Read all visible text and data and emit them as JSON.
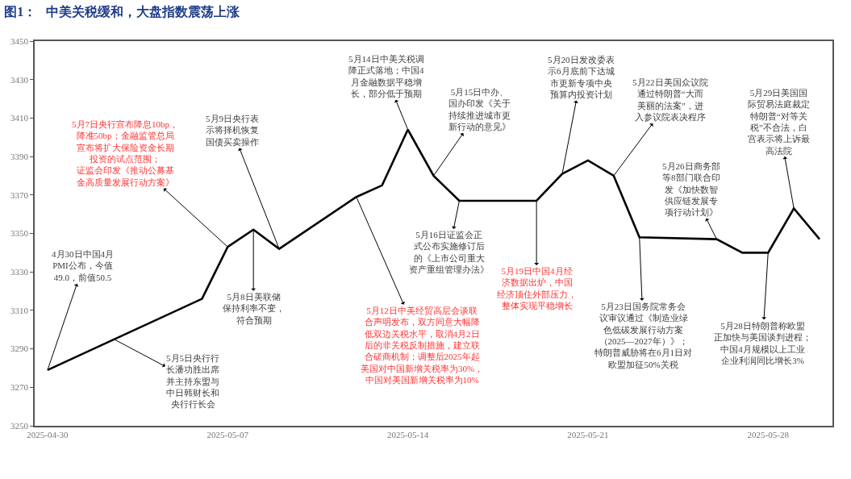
{
  "chart_data": {
    "type": "line",
    "title": "图1：   中美关税缓和，大盘指数震荡上涨",
    "x": [
      "2025-04-30",
      "2025-05-06",
      "2025-05-07",
      "2025-05-08",
      "2025-05-09",
      "2025-05-12",
      "2025-05-13",
      "2025-05-14",
      "2025-05-15",
      "2025-05-16",
      "2025-05-19",
      "2025-05-20",
      "2025-05-21",
      "2025-05-22",
      "2025-05-23",
      "2025-05-26",
      "2025-05-27",
      "2025-05-28",
      "2025-05-29",
      "2025-05-30"
    ],
    "series": [
      {
        "color": "#000000",
        "values": [
          3279,
          3316,
          3343,
          3352,
          3342,
          3369,
          3375,
          3404,
          3380,
          3367,
          3367,
          3381,
          3388,
          3380,
          3348,
          3347,
          3340,
          3340,
          3363,
          3347
        ]
      }
    ],
    "xlim": [
      "2025-04-29T12:00",
      "2025-05-30T12:00"
    ],
    "xticks": [
      "2025-04-30",
      "2025-05-07",
      "2025-05-14",
      "2025-05-21",
      "2025-05-28"
    ],
    "ylim": [
      3250,
      3450
    ],
    "yticks": [
      3250,
      3270,
      3290,
      3310,
      3330,
      3350,
      3370,
      3390,
      3410,
      3430,
      3450
    ],
    "marker": "none",
    "line_style": "solid",
    "annotations": [
      {
        "text": "4月30日中国4月PMI公布，今值49.0，前值50.5",
        "x": "2025-04-30",
        "y": 3279
      },
      {
        "text": "5月5日央行行长潘功胜出席并主持东盟与中日韩财长和央行行长会",
        "x": "2025-05-02T14:00",
        "y": 3295
      },
      {
        "text": "5月7日央行宣布降息10bp，降准50bp；金融监管总局宣布将扩大保险资金长期投资的试点范围；证监会印发《推动公募基金高质量发展行动方案》",
        "x": "2025-05-07",
        "y": 3343
      },
      {
        "text": "5月8日美联储保持利率不变，符合预期",
        "x": "2025-05-08",
        "y": 3352
      },
      {
        "text": "5月9日央行表示将择机恢复国债买卖操作",
        "x": "2025-05-09",
        "y": 3342
      },
      {
        "text": "5月12日中美经贸高层会谈联合声明发布，双方同意大幅降低双边关税水平，取消4月2日后的非关税反制措施，建立联合磋商机制；调整后2025年起美国对中国新增关税率为30%，中国对美国新增关税率为10%",
        "x": "2025-05-12",
        "y": 3369
      },
      {
        "text": "5月14日中美关税调降正式落地；中国4月金融数据平稳增长，部分低于预期",
        "x": "2025-05-14",
        "y": 3404
      },
      {
        "text": "5月15日中办、国办印发《关于持续推进城市更新行动的意见》",
        "x": "2025-05-15",
        "y": 3380
      },
      {
        "text": "5月16日证监会正式公布实施修订后的《上市公司重大资产重组管理办法》",
        "x": "2025-05-16",
        "y": 3367
      },
      {
        "text": "5月19日中国4月经济数据出炉，中国经济顶住外部压力，整体实现平稳增长",
        "x": "2025-05-19",
        "y": 3367
      },
      {
        "text": "5月20日发改委表示6月底前下达城市更新专项中央预算内投资计划",
        "x": "2025-05-20",
        "y": 3381
      },
      {
        "text": "5月22日美国众议院通过特朗普“大而美丽的法案”，进入参议院表决程序",
        "x": "2025-05-22",
        "y": 3380
      },
      {
        "text": "5月23日国务院常务会议审议通过《制造业绿色低碳发展行动方案（2025—2027年）》；特朗普威胁将在6月1日对欧盟加征50%关税",
        "x": "2025-05-23",
        "y": 3348
      },
      {
        "text": "5月26日商务部等8部门联合印发《加快数智供应链发展专项行动计划》",
        "x": "2025-05-26",
        "y": 3347
      },
      {
        "text": "5月28日特朗普称欧盟正加快与美国谈判进程；中国4月规模以上工业企业利润同比增长3%",
        "x": "2025-05-28",
        "y": 3340
      },
      {
        "text": "5月29日美国国际贸易法庭裁定特朗普“对等关税”不合法，白宫表示将上诉最高法院",
        "x": "2025-05-29",
        "y": 3363
      }
    ]
  }
}
